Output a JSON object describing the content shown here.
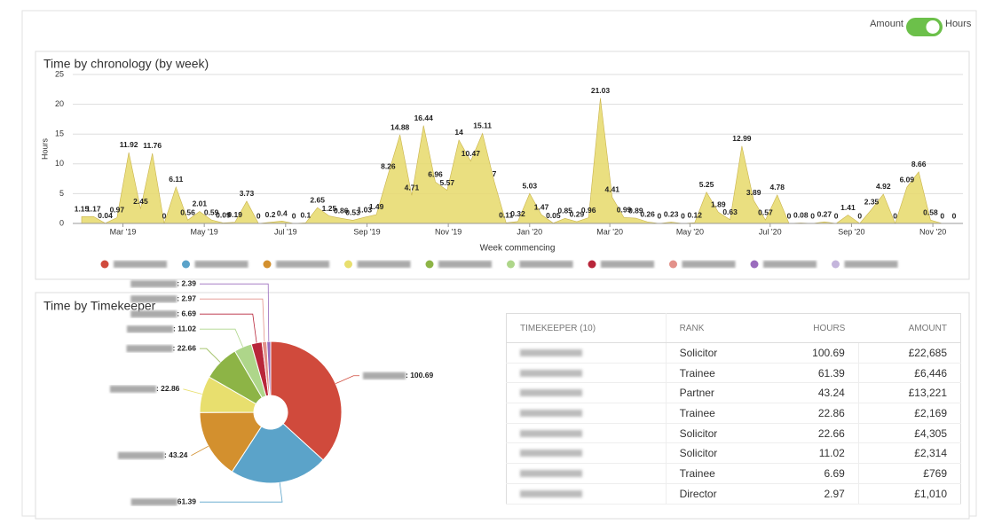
{
  "toggle": {
    "left": "Amount",
    "right": "Hours"
  },
  "chart_data": [
    {
      "type": "area",
      "title": "Time by chronology (by week)",
      "y_label": "Hours",
      "x_label": "Week commencing",
      "ylim": [
        0,
        25
      ],
      "yticks": [
        0,
        5,
        10,
        15,
        20,
        25
      ],
      "grid": true,
      "xlim": [
        0,
        74
      ],
      "xticks": [
        {
          "value": 3.5,
          "label": "Mar '19"
        },
        {
          "value": 10.4,
          "label": "May '19"
        },
        {
          "value": 17.3,
          "label": "Jul '19"
        },
        {
          "value": 24.2,
          "label": "Sep '19"
        },
        {
          "value": 31.1,
          "label": "Nov '19"
        },
        {
          "value": 38,
          "label": "Jan '20"
        },
        {
          "value": 44.8,
          "label": "Mar '20"
        },
        {
          "value": 51.6,
          "label": "May '20"
        },
        {
          "value": 58.4,
          "label": "Jul '20"
        },
        {
          "value": 65.3,
          "label": "Sep '20"
        },
        {
          "value": 72.2,
          "label": "Nov '20"
        }
      ],
      "series": [
        {
          "color": "#e6d96a",
          "values": [
            1.15,
            1.17,
            0.04,
            0.97,
            11.92,
            2.45,
            11.76,
            0,
            6.11,
            0.56,
            2.01,
            0.59,
            0.09,
            0.19,
            3.73,
            0,
            0.2,
            0.4,
            0,
            0.1,
            2.65,
            1.25,
            0.86,
            0.53,
            1.03,
            1.49,
            8.26,
            14.88,
            4.71,
            16.44,
            6.96,
            5.57,
            14,
            10.47,
            15.11,
            7,
            0.11,
            0.32,
            5.03,
            1.47,
            0.05,
            0.85,
            0.29,
            0.96,
            21.03,
            4.41,
            0.99,
            0.89,
            0.26,
            0,
            0.23,
            0,
            0.12,
            5.25,
            1.89,
            0.63,
            12.99,
            3.89,
            0.57,
            4.78,
            0,
            0.08,
            0,
            0.27,
            0,
            1.41,
            0,
            2.35,
            4.92,
            0,
            6.09,
            8.66,
            0.58,
            0,
            0
          ]
        }
      ],
      "legend_colors": [
        "#d04a3c",
        "#5ba3c9",
        "#d3902e",
        "#e8df6e",
        "#8db446",
        "#aed68a",
        "#b8263a",
        "#e3918a",
        "#9a6bbd",
        "#c4b5dc"
      ]
    },
    {
      "type": "pie",
      "title": "Time by Timekeeper",
      "values": [
        100.69,
        61.39,
        43.24,
        22.86,
        22.66,
        11.02,
        6.69,
        2.97,
        2.39
      ],
      "value_labels": [
        ": 100.69",
        " 61.39",
        ": 43.24",
        ": 22.86",
        ": 22.66",
        ": 11.02",
        ": 6.69",
        ": 2.97",
        ": 2.39"
      ],
      "colors": [
        "#d04a3c",
        "#5ba3c9",
        "#d3902e",
        "#e8df6e",
        "#8db446",
        "#aed68a",
        "#b8263a",
        "#e3918a",
        "#9a6bbd"
      ]
    }
  ],
  "table": {
    "header": [
      "TIMEKEEPER (10)",
      "RANK",
      "HOURS",
      "AMOUNT"
    ],
    "rows": [
      [
        "Solicitor",
        "100.69",
        "£22,685"
      ],
      [
        "Trainee",
        "61.39",
        "£6,446"
      ],
      [
        "Partner",
        "43.24",
        "£13,221"
      ],
      [
        "Trainee",
        "22.86",
        "£2,169"
      ],
      [
        "Solicitor",
        "22.66",
        "£4,305"
      ],
      [
        "Solicitor",
        "11.02",
        "£2,314"
      ],
      [
        "Trainee",
        "6.69",
        "£769"
      ],
      [
        "Director",
        "2.97",
        "£1,010"
      ]
    ]
  }
}
